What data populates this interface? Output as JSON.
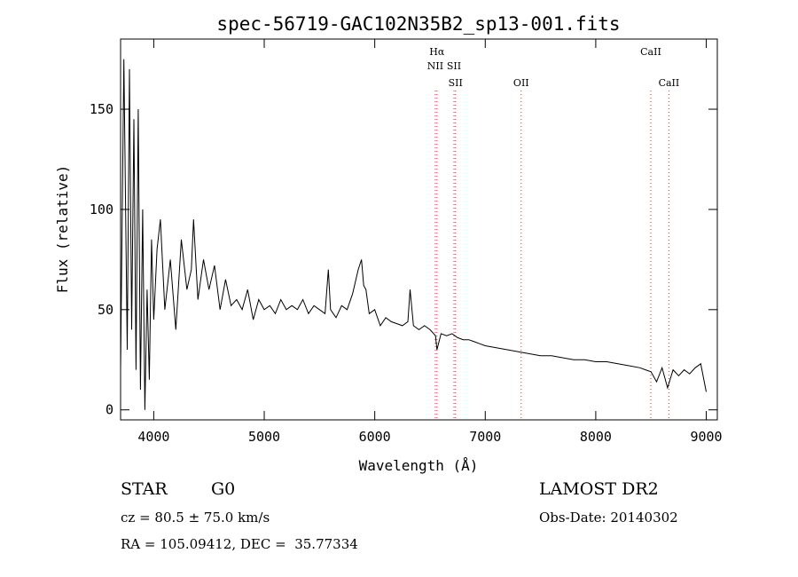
{
  "chart_data": {
    "type": "line",
    "title": "spec-56719-GAC102N35B2_sp13-001.fits",
    "xlabel": "Wavelength (Å)",
    "ylabel": "Flux (relative)",
    "xlim": [
      3700,
      9100
    ],
    "ylim": [
      -5,
      185
    ],
    "xticks": [
      4000,
      5000,
      6000,
      7000,
      8000,
      9000
    ],
    "yticks": [
      0,
      50,
      100,
      150
    ],
    "grid": false,
    "series": [
      {
        "color": "#000000",
        "x": [
          3700,
          3730,
          3760,
          3780,
          3800,
          3820,
          3840,
          3860,
          3880,
          3900,
          3920,
          3940,
          3960,
          3980,
          4000,
          4030,
          4060,
          4100,
          4150,
          4200,
          4250,
          4300,
          4340,
          4360,
          4400,
          4450,
          4500,
          4550,
          4600,
          4650,
          4700,
          4750,
          4800,
          4850,
          4900,
          4950,
          5000,
          5050,
          5100,
          5150,
          5200,
          5250,
          5300,
          5350,
          5400,
          5450,
          5500,
          5550,
          5580,
          5600,
          5650,
          5700,
          5750,
          5800,
          5850,
          5880,
          5900,
          5920,
          5950,
          6000,
          6050,
          6100,
          6150,
          6200,
          6250,
          6300,
          6320,
          6350,
          6400,
          6450,
          6500,
          6550,
          6563,
          6600,
          6650,
          6700,
          6750,
          6800,
          6850,
          6900,
          6950,
          7000,
          7100,
          7200,
          7300,
          7400,
          7500,
          7600,
          7700,
          7800,
          7900,
          8000,
          8100,
          8200,
          8300,
          8400,
          8450,
          8500,
          8550,
          8600,
          8650,
          8700,
          8750,
          8800,
          8850,
          8900,
          8950,
          9000
        ],
        "y": [
          20,
          175,
          30,
          170,
          40,
          145,
          20,
          150,
          10,
          100,
          0,
          60,
          15,
          85,
          45,
          80,
          95,
          50,
          75,
          40,
          85,
          60,
          70,
          95,
          55,
          75,
          60,
          72,
          50,
          65,
          52,
          55,
          50,
          60,
          45,
          55,
          50,
          52,
          48,
          55,
          50,
          52,
          50,
          55,
          48,
          52,
          50,
          48,
          70,
          50,
          46,
          52,
          50,
          58,
          70,
          75,
          62,
          60,
          48,
          50,
          42,
          46,
          44,
          43,
          42,
          44,
          60,
          42,
          40,
          42,
          40,
          37,
          30,
          38,
          37,
          38,
          36,
          35,
          35,
          34,
          33,
          32,
          31,
          30,
          29,
          28,
          27,
          27,
          26,
          25,
          25,
          24,
          24,
          23,
          22,
          21,
          20,
          19,
          14,
          21,
          11,
          20,
          17,
          20,
          18,
          21,
          23,
          9
        ]
      }
    ],
    "line_markers": [
      {
        "label": "Hα",
        "x": 6563,
        "tier": 1,
        "color": "#cc3333"
      },
      {
        "label": "NII",
        "x": 6548,
        "tier": 2,
        "color": "#cc3333"
      },
      {
        "label": "SII",
        "x": 6717,
        "tier": 2,
        "color": "#cc3333"
      },
      {
        "label": "SII",
        "x": 6731,
        "tier": 3,
        "color": "#cc3333"
      },
      {
        "label": "OII",
        "x": 7325,
        "tier": 3,
        "color": "#cc3333"
      },
      {
        "label": "CaII",
        "x": 8498,
        "tier": 1,
        "color": "#cc3333"
      },
      {
        "label": "CaII",
        "x": 8662,
        "tier": 3,
        "color": "#cc3333"
      }
    ]
  },
  "info": {
    "object_class": "STAR",
    "subclass": "G0",
    "redshift": "cz = 80.5 ± 75.0 km/s",
    "coords": "RA = 105.09412, DEC =  35.77334",
    "survey": "LAMOST DR2",
    "obs_date": "Obs-Date: 20140302"
  }
}
